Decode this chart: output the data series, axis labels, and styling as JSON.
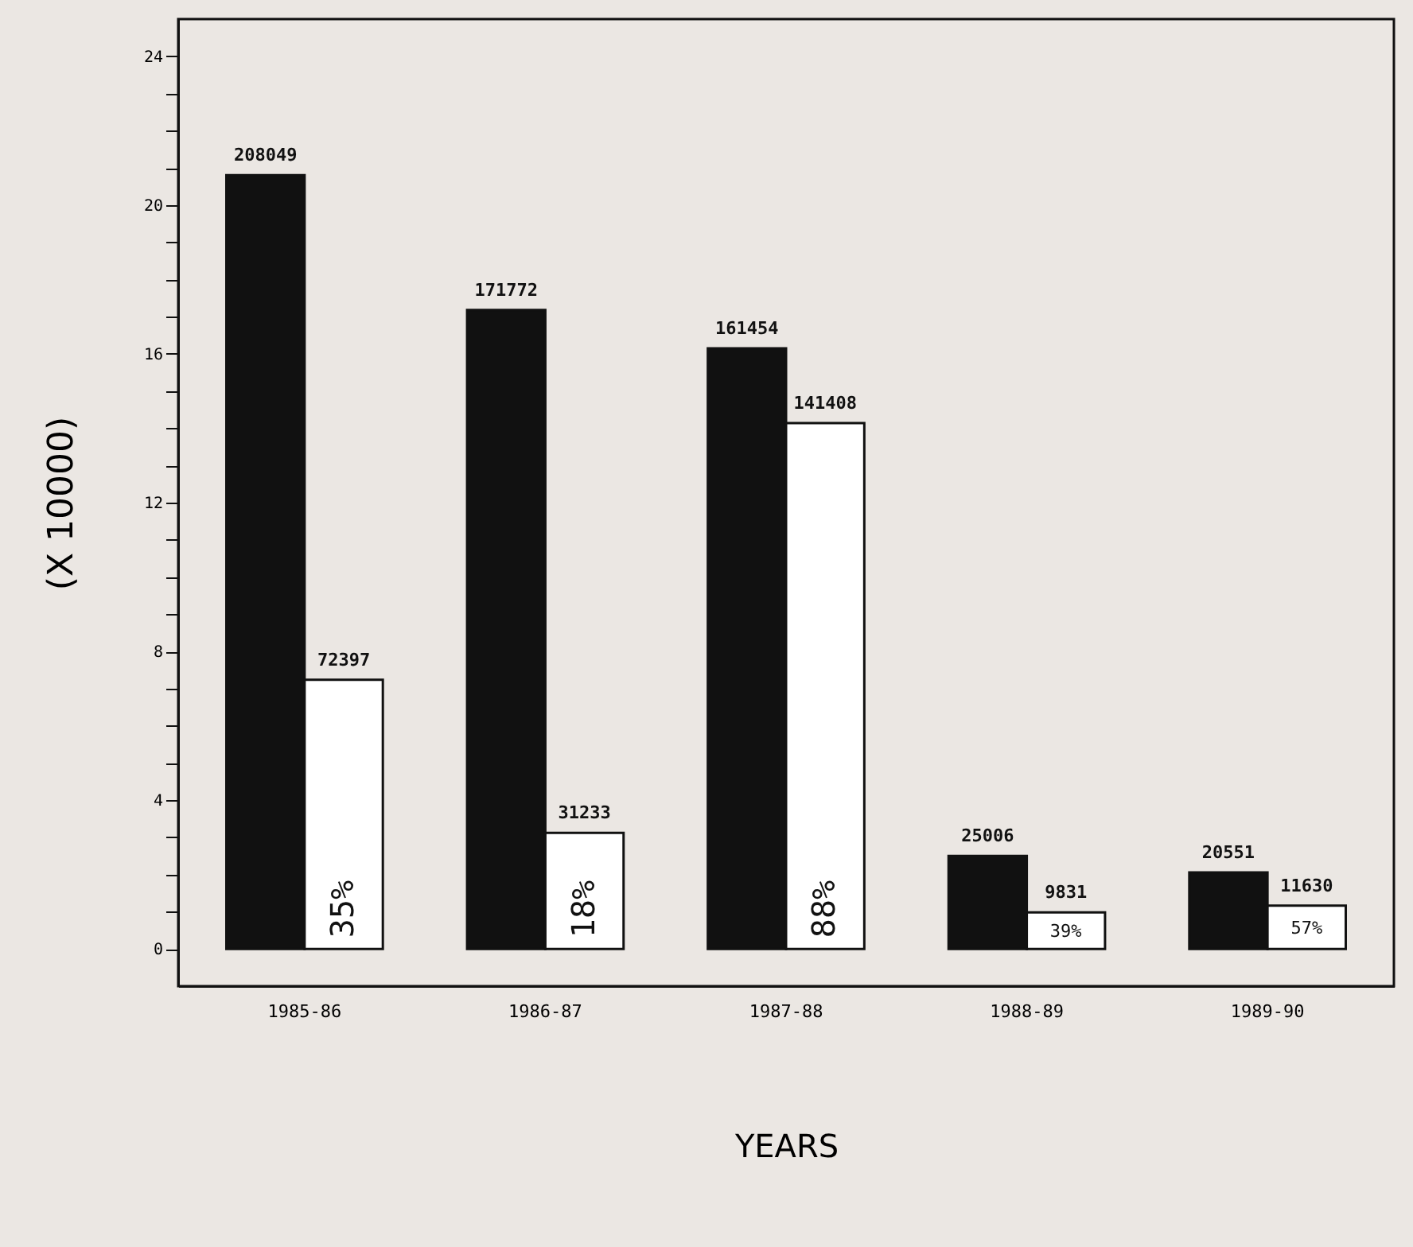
{
  "chart_data": {
    "type": "bar",
    "xlabel": "YEARS",
    "ylabel": "(X 10000)",
    "categories": [
      "1985-86",
      "1986-87",
      "1987-88",
      "1988-89",
      "1989-90"
    ],
    "series": [
      {
        "color": "#111111",
        "values": [
          20.8049,
          17.1772,
          16.1454,
          2.5006,
          2.0551
        ]
      },
      {
        "color": "#ffffff",
        "values": [
          7.2397,
          3.1233,
          14.1408,
          0.9831,
          1.163
        ]
      }
    ],
    "annotations": [
      {
        "text": "208049",
        "x": "1985-86",
        "y": 20.8049
      },
      {
        "text": "171772",
        "x": "1986-87",
        "y": 17.1772
      },
      {
        "text": "161454",
        "x": "1987-88",
        "y": 16.1454
      },
      {
        "text": "25006",
        "x": "1988-89",
        "y": 2.5006
      },
      {
        "text": "20551",
        "x": "1989-90",
        "y": 2.0551
      },
      {
        "text": "72397",
        "x": "1985-86",
        "y": 7.2397
      },
      {
        "text": "31233",
        "x": "1986-87",
        "y": 3.1233
      },
      {
        "text": "141408",
        "x": "1987-88",
        "y": 14.1408
      },
      {
        "text": "9831",
        "x": "1988-89",
        "y": 0.9831
      },
      {
        "text": "11630",
        "x": "1989-90",
        "y": 1.163
      },
      {
        "text": "35%",
        "x": "1985-86",
        "y": 0.3
      },
      {
        "text": "18%",
        "x": "1986-87",
        "y": 0.3
      },
      {
        "text": "88%",
        "x": "1987-88",
        "y": 0.3
      },
      {
        "text": "39%",
        "x": "1988-89",
        "y": 0.45
      },
      {
        "text": "57%",
        "x": "1989-90",
        "y": 0.55
      }
    ],
    "ylim": [
      -1,
      25
    ],
    "yticks": [
      0,
      {
        "value": 1,
        "label": null
      },
      {
        "value": 2,
        "label": null
      },
      {
        "value": 3,
        "label": null
      },
      4,
      {
        "value": 5,
        "label": null
      },
      {
        "value": 6,
        "label": null
      },
      {
        "value": 7,
        "label": null
      },
      8,
      {
        "value": 9,
        "label": null
      },
      {
        "value": 10,
        "label": null
      },
      {
        "value": 11,
        "label": null
      },
      12,
      {
        "value": 13,
        "label": null
      },
      {
        "value": 14,
        "label": null
      },
      {
        "value": 15,
        "label": null
      },
      16,
      {
        "value": 17,
        "label": null
      },
      {
        "value": 18,
        "label": null
      },
      {
        "value": 19,
        "label": null
      },
      20,
      {
        "value": 21,
        "label": null
      },
      {
        "value": 22,
        "label": null
      },
      {
        "value": 23,
        "label": null
      },
      24
    ],
    "grid": false
  }
}
